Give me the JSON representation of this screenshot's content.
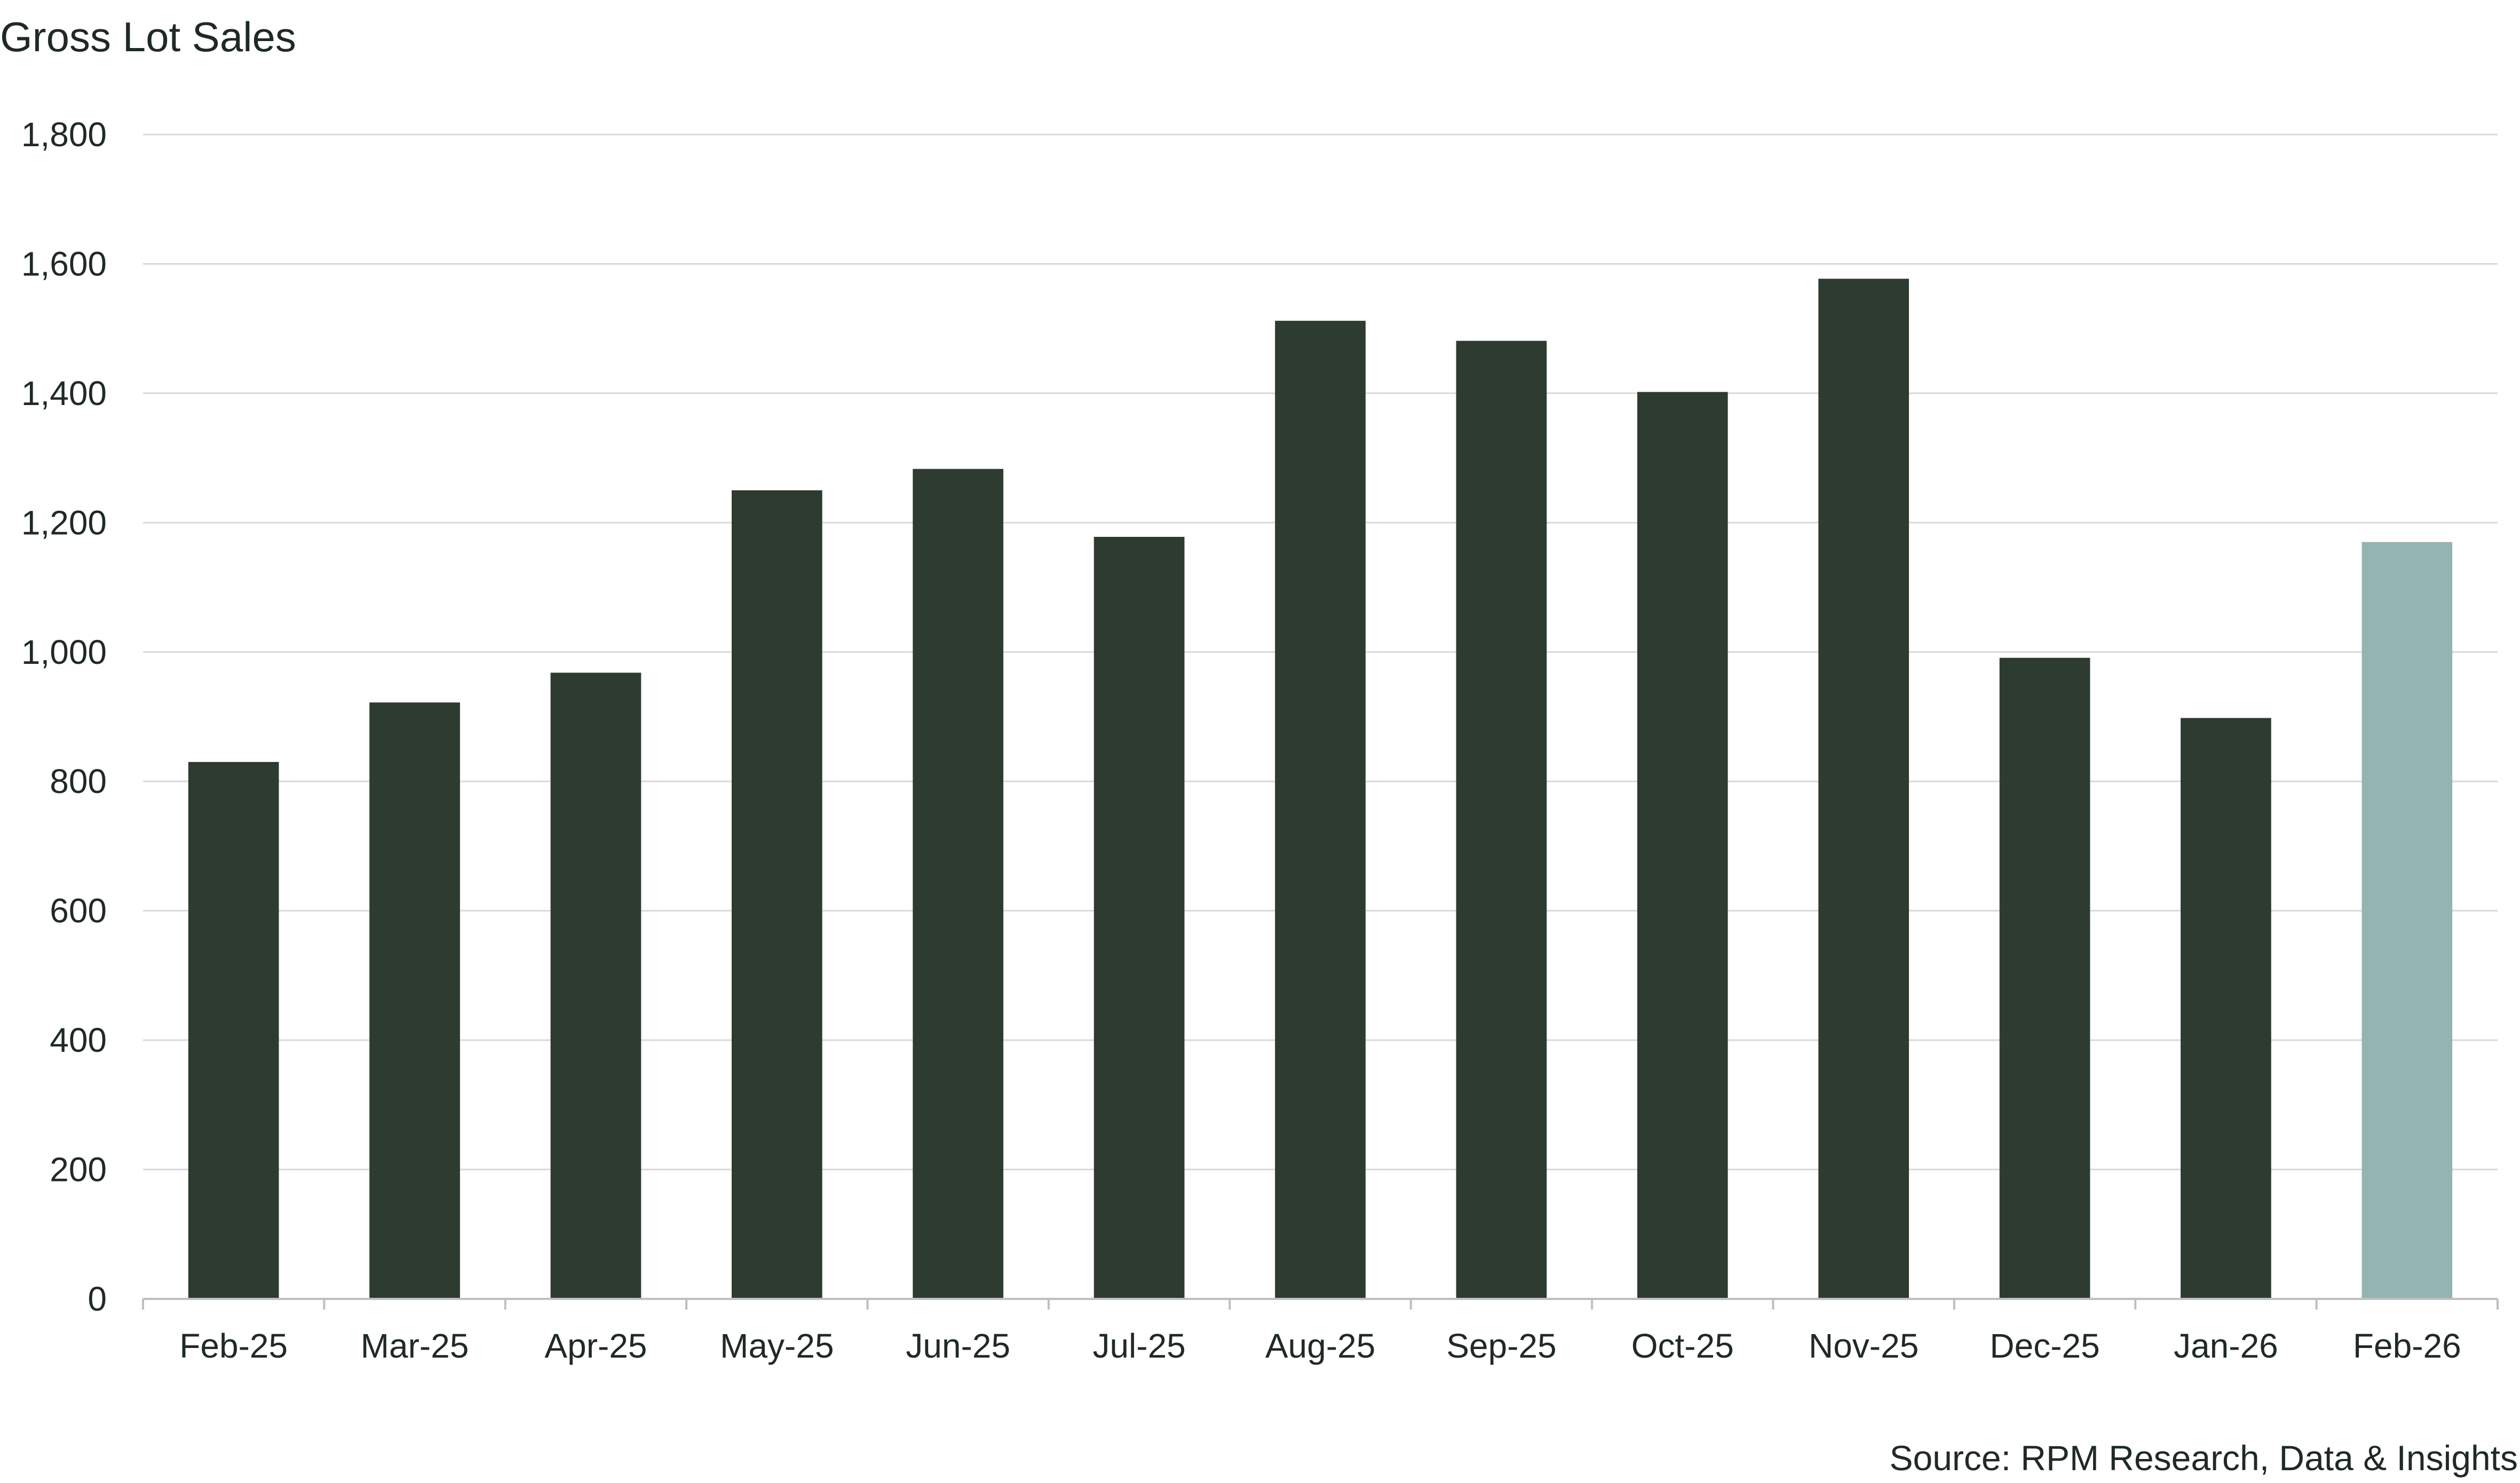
{
  "chart_data": {
    "type": "bar",
    "title": "Gross Lot Sales",
    "xlabel": "",
    "ylabel": "",
    "categories": [
      "Feb-25",
      "Mar-25",
      "Apr-25",
      "May-25",
      "Jun-25",
      "Jul-25",
      "Aug-25",
      "Sep-25",
      "Oct-25",
      "Nov-25",
      "Dec-25",
      "Jan-26",
      "Feb-26"
    ],
    "values": [
      830,
      922,
      968,
      1250,
      1283,
      1178,
      1512,
      1481,
      1402,
      1577,
      991,
      898,
      1170
    ],
    "ylim": [
      0,
      1800
    ],
    "yticks": [
      0,
      200,
      400,
      600,
      800,
      1000,
      1200,
      1400,
      1600,
      1800
    ],
    "ytick_labels": [
      "0",
      "200",
      "400",
      "600",
      "800",
      "1,000",
      "1,200",
      "1,400",
      "1,600",
      "1,800"
    ],
    "grid": true,
    "bar_color": "#2e3b30",
    "highlight_color": "#94b4b2",
    "highlight_index": 12,
    "source": "Source: RPM Research, Data & Insights"
  }
}
